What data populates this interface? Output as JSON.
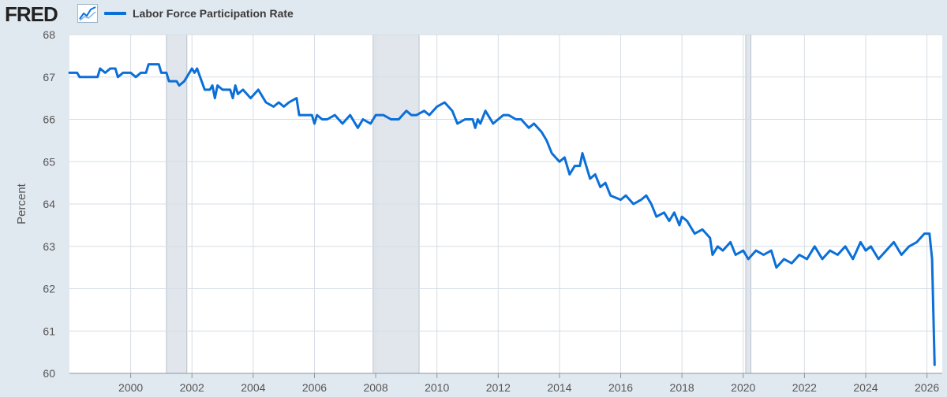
{
  "header": {
    "brand": "FRED",
    "brand_icon": "line-chart-icon"
  },
  "colors": {
    "series": "#0b6fd8",
    "recession": "#e1e6ec",
    "grid": "#d6dde4",
    "background": "#e1e9f0",
    "plot": "#ffffff"
  },
  "chart_data": {
    "type": "line",
    "title": "",
    "xlabel": "",
    "ylabel": "Percent",
    "xlim": [
      "1998-01",
      "2026-07"
    ],
    "ylim": [
      60,
      68
    ],
    "yticks": [
      60,
      61,
      62,
      63,
      64,
      65,
      66,
      67,
      68
    ],
    "xticks": [
      "2000",
      "2002",
      "2004",
      "2006",
      "2008",
      "2010",
      "2012",
      "2014",
      "2016",
      "2018",
      "2020",
      "2022",
      "2024",
      "2026"
    ],
    "grid": true,
    "legend": "top-left",
    "recessions": [
      {
        "start": "2001-03",
        "end": "2001-11"
      },
      {
        "start": "2007-12",
        "end": "2009-06"
      },
      {
        "start": "2020-02",
        "end": "2020-04"
      }
    ],
    "series": [
      {
        "name": "Labor Force Participation Rate",
        "points": [
          [
            "1998-01",
            67.1
          ],
          [
            "1998-04",
            67.1
          ],
          [
            "1998-05",
            67.0
          ],
          [
            "1998-12",
            67.0
          ],
          [
            "1999-01",
            67.2
          ],
          [
            "1999-03",
            67.1
          ],
          [
            "1999-05",
            67.2
          ],
          [
            "1999-07",
            67.2
          ],
          [
            "1999-08",
            67.0
          ],
          [
            "1999-10",
            67.1
          ],
          [
            "2000-01",
            67.1
          ],
          [
            "2000-03",
            67.0
          ],
          [
            "2000-05",
            67.1
          ],
          [
            "2000-07",
            67.1
          ],
          [
            "2000-08",
            67.3
          ],
          [
            "2000-12",
            67.3
          ],
          [
            "2001-01",
            67.1
          ],
          [
            "2001-03",
            67.1
          ],
          [
            "2001-04",
            66.9
          ],
          [
            "2001-07",
            66.9
          ],
          [
            "2001-08",
            66.8
          ],
          [
            "2001-10",
            66.9
          ],
          [
            "2002-01",
            67.2
          ],
          [
            "2002-02",
            67.1
          ],
          [
            "2002-03",
            67.2
          ],
          [
            "2002-06",
            66.7
          ],
          [
            "2002-08",
            66.7
          ],
          [
            "2002-09",
            66.8
          ],
          [
            "2002-10",
            66.5
          ],
          [
            "2002-11",
            66.8
          ],
          [
            "2003-01",
            66.7
          ],
          [
            "2003-04",
            66.7
          ],
          [
            "2003-05",
            66.5
          ],
          [
            "2003-06",
            66.8
          ],
          [
            "2003-07",
            66.6
          ],
          [
            "2003-09",
            66.7
          ],
          [
            "2003-12",
            66.5
          ],
          [
            "2004-03",
            66.7
          ],
          [
            "2004-06",
            66.4
          ],
          [
            "2004-09",
            66.3
          ],
          [
            "2004-11",
            66.4
          ],
          [
            "2005-01",
            66.3
          ],
          [
            "2005-03",
            66.4
          ],
          [
            "2005-06",
            66.5
          ],
          [
            "2005-07",
            66.1
          ],
          [
            "2005-12",
            66.1
          ],
          [
            "2006-01",
            65.9
          ],
          [
            "2006-02",
            66.1
          ],
          [
            "2006-04",
            66.0
          ],
          [
            "2006-06",
            66.0
          ],
          [
            "2006-09",
            66.1
          ],
          [
            "2006-12",
            65.9
          ],
          [
            "2007-03",
            66.1
          ],
          [
            "2007-06",
            65.8
          ],
          [
            "2007-08",
            66.0
          ],
          [
            "2007-11",
            65.9
          ],
          [
            "2008-01",
            66.1
          ],
          [
            "2008-04",
            66.1
          ],
          [
            "2008-07",
            66.0
          ],
          [
            "2008-10",
            66.0
          ],
          [
            "2009-01",
            66.2
          ],
          [
            "2009-03",
            66.1
          ],
          [
            "2009-05",
            66.1
          ],
          [
            "2009-08",
            66.2
          ],
          [
            "2009-10",
            66.1
          ],
          [
            "2010-01",
            66.3
          ],
          [
            "2010-04",
            66.4
          ],
          [
            "2010-07",
            66.2
          ],
          [
            "2010-09",
            65.9
          ],
          [
            "2010-12",
            66.0
          ],
          [
            "2011-03",
            66.0
          ],
          [
            "2011-04",
            65.8
          ],
          [
            "2011-05",
            66.0
          ],
          [
            "2011-06",
            65.9
          ],
          [
            "2011-08",
            66.2
          ],
          [
            "2011-10",
            66.0
          ],
          [
            "2011-11",
            65.9
          ],
          [
            "2012-01",
            66.0
          ],
          [
            "2012-03",
            66.1
          ],
          [
            "2012-05",
            66.1
          ],
          [
            "2012-08",
            66.0
          ],
          [
            "2012-10",
            66.0
          ],
          [
            "2013-01",
            65.8
          ],
          [
            "2013-03",
            65.9
          ],
          [
            "2013-06",
            65.7
          ],
          [
            "2013-08",
            65.5
          ],
          [
            "2013-10",
            65.2
          ],
          [
            "2014-01",
            65.0
          ],
          [
            "2014-03",
            65.1
          ],
          [
            "2014-05",
            64.7
          ],
          [
            "2014-07",
            64.9
          ],
          [
            "2014-09",
            64.9
          ],
          [
            "2014-10",
            65.2
          ],
          [
            "2015-01",
            64.6
          ],
          [
            "2015-03",
            64.7
          ],
          [
            "2015-05",
            64.4
          ],
          [
            "2015-07",
            64.5
          ],
          [
            "2015-09",
            64.2
          ],
          [
            "2016-01",
            64.1
          ],
          [
            "2016-03",
            64.2
          ],
          [
            "2016-06",
            64.0
          ],
          [
            "2016-09",
            64.1
          ],
          [
            "2016-11",
            64.2
          ],
          [
            "2017-01",
            64.0
          ],
          [
            "2017-03",
            63.7
          ],
          [
            "2017-06",
            63.8
          ],
          [
            "2017-08",
            63.6
          ],
          [
            "2017-10",
            63.8
          ],
          [
            "2017-12",
            63.5
          ],
          [
            "2018-01",
            63.7
          ],
          [
            "2018-03",
            63.6
          ],
          [
            "2018-06",
            63.3
          ],
          [
            "2018-09",
            63.4
          ],
          [
            "2018-12",
            63.2
          ],
          [
            "2019-01",
            62.8
          ],
          [
            "2019-03",
            63.0
          ],
          [
            "2019-05",
            62.9
          ],
          [
            "2019-08",
            63.1
          ],
          [
            "2019-10",
            62.8
          ],
          [
            "2020-01",
            62.9
          ],
          [
            "2020-03",
            62.7
          ],
          [
            "2020-06",
            62.9
          ],
          [
            "2020-09",
            62.8
          ],
          [
            "2020-12",
            62.9
          ],
          [
            "2021-02",
            62.5
          ],
          [
            "2021-05",
            62.7
          ],
          [
            "2021-08",
            62.6
          ],
          [
            "2021-11",
            62.8
          ],
          [
            "2022-02",
            62.7
          ],
          [
            "2022-05",
            63.0
          ],
          [
            "2022-08",
            62.7
          ],
          [
            "2022-11",
            62.9
          ],
          [
            "2023-02",
            62.8
          ],
          [
            "2023-05",
            63.0
          ],
          [
            "2023-08",
            62.7
          ],
          [
            "2023-11",
            63.1
          ],
          [
            "2024-01",
            62.9
          ],
          [
            "2024-03",
            63.0
          ],
          [
            "2024-06",
            62.7
          ],
          [
            "2024-09",
            62.9
          ],
          [
            "2024-12",
            63.1
          ],
          [
            "2025-03",
            62.8
          ],
          [
            "2025-06",
            63.0
          ],
          [
            "2025-09",
            63.1
          ],
          [
            "2025-12",
            63.3
          ],
          [
            "2026-02",
            63.3
          ],
          [
            "2026-03",
            62.7
          ],
          [
            "2026-04",
            60.2
          ]
        ]
      }
    ]
  }
}
